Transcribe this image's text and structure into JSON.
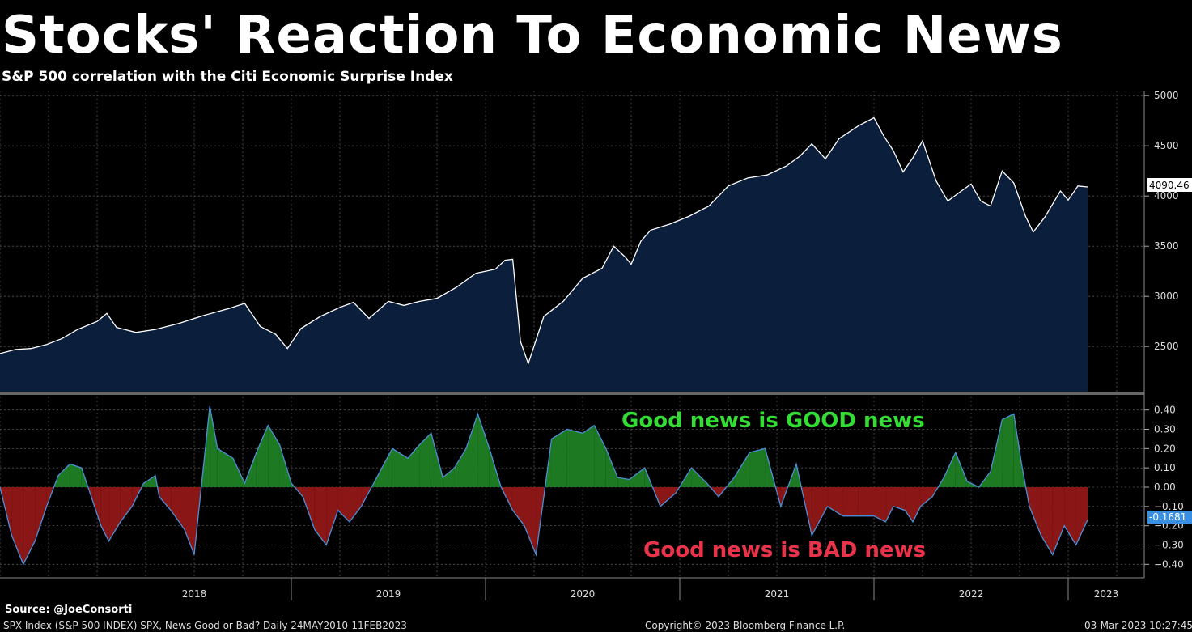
{
  "header": {
    "title": "Stocks' Reaction To Economic News",
    "subtitle": "S&P 500 correlation with the Citi Economic Surprise Index"
  },
  "footer": {
    "source": "Source: @JoeConsorti",
    "description": "SPX Index (S&P 500 INDEX) SPX, News Good or Bad?  Daily 24MAY2010-11FEB2023",
    "copyright": "Copyright© 2023 Bloomberg Finance L.P.",
    "timestamp": "03-Mar-2023 10:27:45"
  },
  "annotations": {
    "good": "Good news is GOOD news",
    "bad": "Good news is BAD news"
  },
  "colors": {
    "background": "#000000",
    "price_fill": "#0b1f3d",
    "price_line": "#ffffff",
    "positive_fill": "#1e7a22",
    "negative_fill": "#8a1616",
    "corr_line": "#4a90d9",
    "good_text": "#33dd33",
    "bad_text": "#e8334a",
    "grid": "#555555"
  },
  "chart_data": [
    {
      "type": "area",
      "name": "S&P 500",
      "last_value_label": "4090.46",
      "y_ticks": [
        2500,
        3000,
        3500,
        4000,
        4500,
        5000
      ],
      "ylim": [
        2050,
        5050
      ],
      "x_ticks": [
        "2018",
        "2019",
        "2020",
        "2021",
        "2022",
        "2023"
      ],
      "xlim": [
        2017.5,
        2023.3
      ],
      "x": [
        2017.5,
        2017.58,
        2017.66,
        2017.74,
        2017.82,
        2017.9,
        2018.0,
        2018.05,
        2018.1,
        2018.2,
        2018.3,
        2018.42,
        2018.55,
        2018.68,
        2018.76,
        2018.84,
        2018.92,
        2018.98,
        2019.05,
        2019.15,
        2019.25,
        2019.32,
        2019.4,
        2019.5,
        2019.58,
        2019.66,
        2019.75,
        2019.85,
        2019.95,
        2020.05,
        2020.1,
        2020.14,
        2020.18,
        2020.22,
        2020.3,
        2020.4,
        2020.5,
        2020.6,
        2020.66,
        2020.72,
        2020.75,
        2020.8,
        2020.85,
        2020.95,
        2021.05,
        2021.15,
        2021.25,
        2021.35,
        2021.45,
        2021.55,
        2021.62,
        2021.68,
        2021.75,
        2021.82,
        2021.92,
        2022.0,
        2022.05,
        2022.1,
        2022.15,
        2022.2,
        2022.25,
        2022.32,
        2022.38,
        2022.45,
        2022.5,
        2022.55,
        2022.6,
        2022.66,
        2022.72,
        2022.78,
        2022.82,
        2022.88,
        2022.92,
        2022.96,
        2023.0,
        2023.05,
        2023.1
      ],
      "y": [
        2430,
        2470,
        2480,
        2520,
        2580,
        2670,
        2750,
        2830,
        2690,
        2640,
        2670,
        2730,
        2810,
        2880,
        2930,
        2700,
        2620,
        2480,
        2680,
        2800,
        2890,
        2940,
        2780,
        2950,
        2910,
        2950,
        2980,
        3090,
        3230,
        3270,
        3360,
        3370,
        2550,
        2330,
        2800,
        2950,
        3180,
        3280,
        3500,
        3390,
        3320,
        3550,
        3660,
        3720,
        3800,
        3900,
        4100,
        4180,
        4210,
        4300,
        4400,
        4520,
        4370,
        4570,
        4700,
        4780,
        4600,
        4450,
        4240,
        4380,
        4550,
        4150,
        3950,
        4050,
        4120,
        3950,
        3900,
        4250,
        4130,
        3800,
        3640,
        3790,
        3920,
        4050,
        3960,
        4100,
        4090
      ]
    },
    {
      "type": "area",
      "name": "Correlation",
      "last_value_label": "-0.1681",
      "y_ticks": [
        -0.4,
        -0.3,
        -0.2,
        -0.1,
        0.0,
        0.1,
        0.2,
        0.3,
        0.4
      ],
      "ylim": [
        -0.47,
        0.47
      ],
      "x": [
        2017.5,
        2017.56,
        2017.62,
        2017.68,
        2017.74,
        2017.8,
        2017.86,
        2017.92,
        2017.98,
        2018.02,
        2018.06,
        2018.12,
        2018.18,
        2018.24,
        2018.3,
        2018.32,
        2018.38,
        2018.45,
        2018.5,
        2018.58,
        2018.62,
        2018.7,
        2018.76,
        2018.82,
        2018.88,
        2018.94,
        2019.0,
        2019.06,
        2019.12,
        2019.18,
        2019.24,
        2019.3,
        2019.36,
        2019.44,
        2019.52,
        2019.6,
        2019.66,
        2019.72,
        2019.78,
        2019.84,
        2019.9,
        2019.96,
        2020.02,
        2020.08,
        2020.14,
        2020.2,
        2020.26,
        2020.34,
        2020.42,
        2020.5,
        2020.56,
        2020.62,
        2020.68,
        2020.74,
        2020.82,
        2020.9,
        2020.98,
        2021.06,
        2021.14,
        2021.2,
        2021.28,
        2021.36,
        2021.44,
        2021.52,
        2021.6,
        2021.68,
        2021.76,
        2021.84,
        2021.92,
        2022.0,
        2022.06,
        2022.1,
        2022.16,
        2022.2,
        2022.24,
        2022.3,
        2022.36,
        2022.42,
        2022.48,
        2022.54,
        2022.6,
        2022.66,
        2022.72,
        2022.76,
        2022.8,
        2022.86,
        2022.92,
        2022.98,
        2023.04,
        2023.1
      ],
      "y": [
        0.0,
        -0.25,
        -0.4,
        -0.28,
        -0.1,
        0.06,
        0.12,
        0.1,
        -0.08,
        -0.2,
        -0.28,
        -0.18,
        -0.1,
        0.02,
        0.06,
        -0.05,
        -0.12,
        -0.22,
        -0.35,
        0.42,
        0.2,
        0.15,
        0.02,
        0.18,
        0.32,
        0.22,
        0.02,
        -0.05,
        -0.22,
        -0.3,
        -0.12,
        -0.18,
        -0.1,
        0.05,
        0.2,
        0.15,
        0.22,
        0.28,
        0.05,
        0.1,
        0.2,
        0.38,
        0.2,
        0.0,
        -0.12,
        -0.2,
        -0.35,
        0.25,
        0.3,
        0.28,
        0.32,
        0.2,
        0.05,
        0.04,
        0.1,
        -0.1,
        -0.03,
        0.1,
        0.02,
        -0.05,
        0.05,
        0.18,
        0.2,
        -0.1,
        0.12,
        -0.25,
        -0.1,
        -0.15,
        -0.15,
        -0.15,
        -0.18,
        -0.1,
        -0.12,
        -0.18,
        -0.1,
        -0.05,
        0.05,
        0.18,
        0.03,
        0.0,
        0.08,
        0.35,
        0.38,
        0.12,
        -0.1,
        -0.25,
        -0.35,
        -0.2,
        -0.3,
        -0.17
      ]
    }
  ]
}
